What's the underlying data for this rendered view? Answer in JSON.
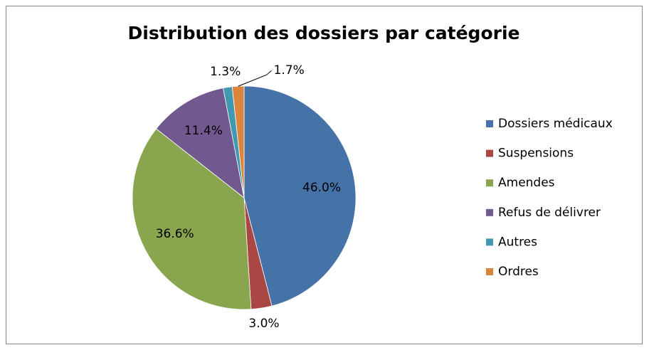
{
  "chart_data": {
    "type": "pie",
    "title": "Distribution des dossiers par catégorie",
    "categories": [
      "Dossiers médicaux",
      "Suspensions",
      "Amendes",
      "Refus de délivrer",
      "Autres",
      "Ordres"
    ],
    "values": [
      46.0,
      3.0,
      36.6,
      11.4,
      1.3,
      1.7
    ],
    "value_labels": [
      "46.0%",
      "3.0%",
      "36.6%",
      "11.4%",
      "1.3%",
      "1.7%"
    ],
    "colors": [
      "#4572a7",
      "#aa4643",
      "#89a54e",
      "#71588f",
      "#4198af",
      "#db843d"
    ],
    "legend": "right"
  }
}
